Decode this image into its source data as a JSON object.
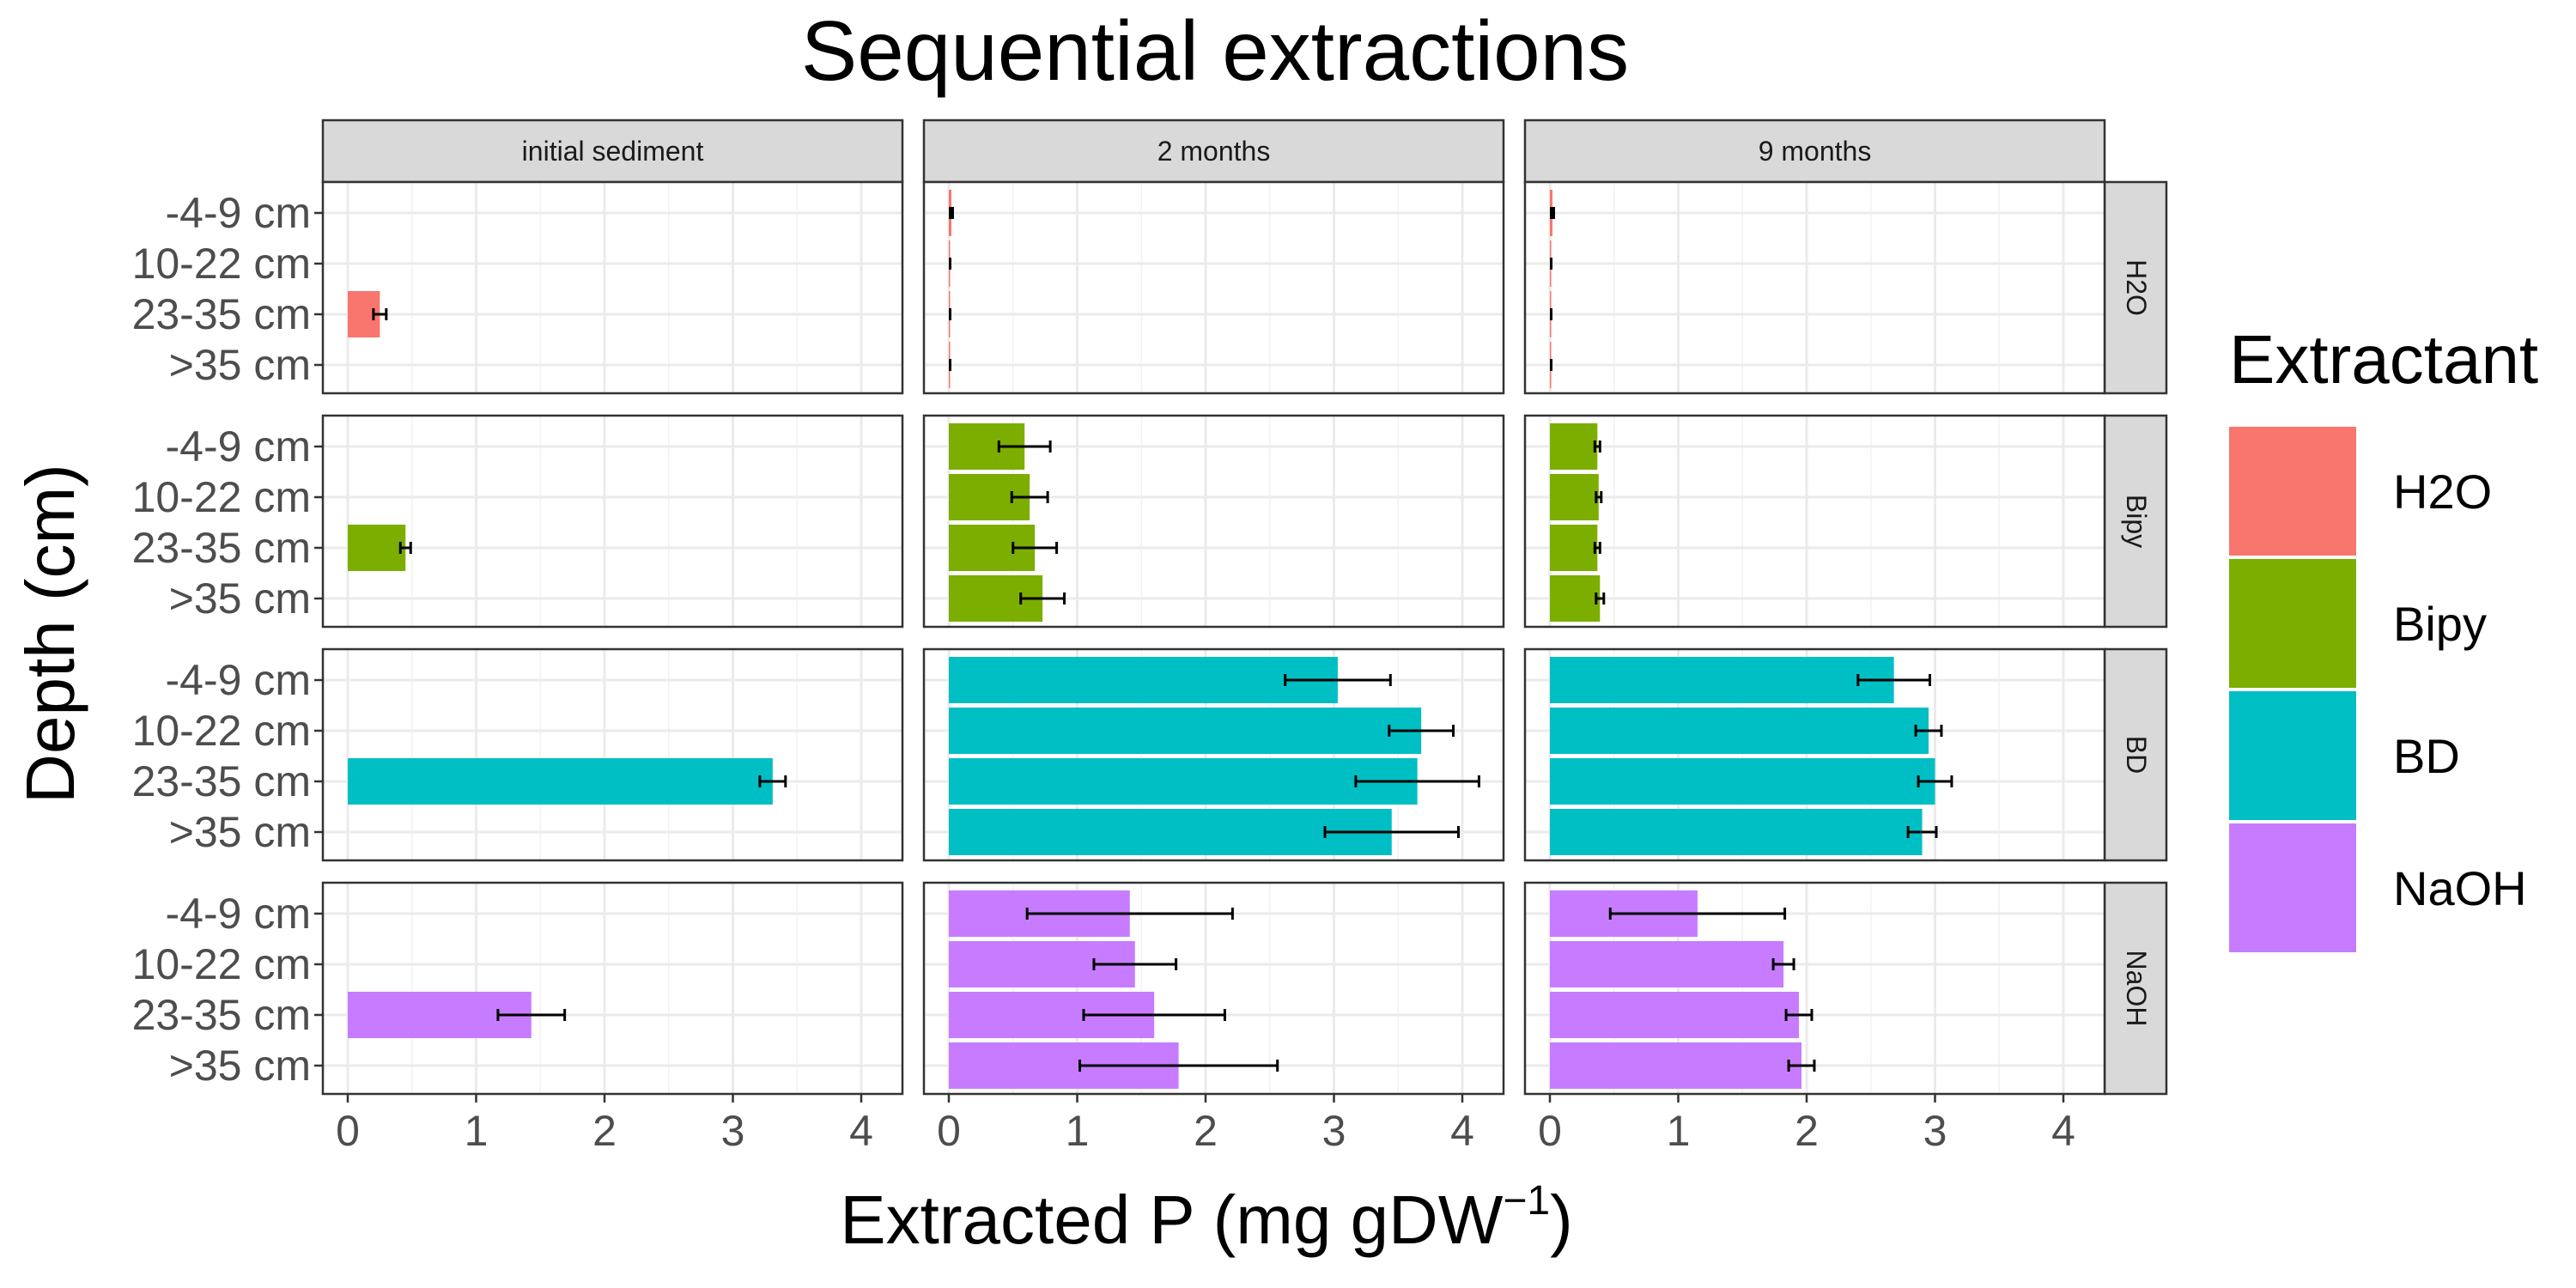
{
  "chart_data": {
    "type": "bar",
    "orientation": "horizontal",
    "title": "Sequential extractions",
    "xlabel_main": "Extracted P (mg gDW",
    "xlabel_sup": "−1",
    "xlabel_end": ")",
    "ylabel": "Depth (cm)",
    "xlim": [
      -0.2,
      4.3
    ],
    "x_ticks": [
      0,
      1,
      2,
      3,
      4
    ],
    "x_tick_labels": [
      "0",
      "1",
      "2",
      "3",
      "4"
    ],
    "grid": true,
    "legend_position": "right",
    "legend_title": "Extractant",
    "columns": [
      "initial sediment",
      "2 months",
      "9 months"
    ],
    "rows": [
      "H2O",
      "Bipy",
      "BD",
      "NaOH"
    ],
    "depths": [
      "-4-9 cm",
      "10-22 cm",
      "23-35 cm",
      ">35 cm"
    ],
    "colors": {
      "H2O": "#F8766D",
      "Bipy": "#7CAE00",
      "BD": "#00BFC4",
      "NaOH": "#C77CFF"
    },
    "series": [
      {
        "name": "H2O",
        "panels": [
          {
            "values": [
              null,
              null,
              0.25,
              null
            ],
            "errors": [
              null,
              null,
              0.05,
              null
            ]
          },
          {
            "values": [
              0.02,
              0.01,
              0.01,
              0.01
            ],
            "errors": [
              0.01,
              0.0,
              0.0,
              0.0
            ]
          },
          {
            "values": [
              0.02,
              0.01,
              0.01,
              0.01
            ],
            "errors": [
              0.01,
              0.0,
              0.0,
              0.0
            ]
          }
        ]
      },
      {
        "name": "Bipy",
        "panels": [
          {
            "values": [
              null,
              null,
              0.45,
              null
            ],
            "errors": [
              null,
              null,
              0.04,
              null
            ]
          },
          {
            "values": [
              0.59,
              0.63,
              0.67,
              0.73
            ],
            "errors": [
              0.2,
              0.14,
              0.17,
              0.17
            ]
          },
          {
            "values": [
              0.37,
              0.38,
              0.37,
              0.39
            ],
            "errors": [
              0.02,
              0.02,
              0.02,
              0.03
            ]
          }
        ]
      },
      {
        "name": "BD",
        "panels": [
          {
            "values": [
              null,
              null,
              3.31,
              null
            ],
            "errors": [
              null,
              null,
              0.1,
              null
            ]
          },
          {
            "values": [
              3.03,
              3.68,
              3.65,
              3.45
            ],
            "errors": [
              0.41,
              0.25,
              0.48,
              0.52
            ]
          },
          {
            "values": [
              2.68,
              2.95,
              3.0,
              2.9
            ],
            "errors": [
              0.28,
              0.1,
              0.13,
              0.11
            ]
          }
        ]
      },
      {
        "name": "NaOH",
        "panels": [
          {
            "values": [
              null,
              null,
              1.43,
              null
            ],
            "errors": [
              null,
              null,
              0.26,
              null
            ]
          },
          {
            "values": [
              1.41,
              1.45,
              1.6,
              1.79
            ],
            "errors": [
              0.8,
              0.32,
              0.55,
              0.77
            ]
          },
          {
            "values": [
              1.15,
              1.82,
              1.94,
              1.96
            ],
            "errors": [
              0.68,
              0.08,
              0.1,
              0.1
            ]
          }
        ]
      }
    ]
  }
}
